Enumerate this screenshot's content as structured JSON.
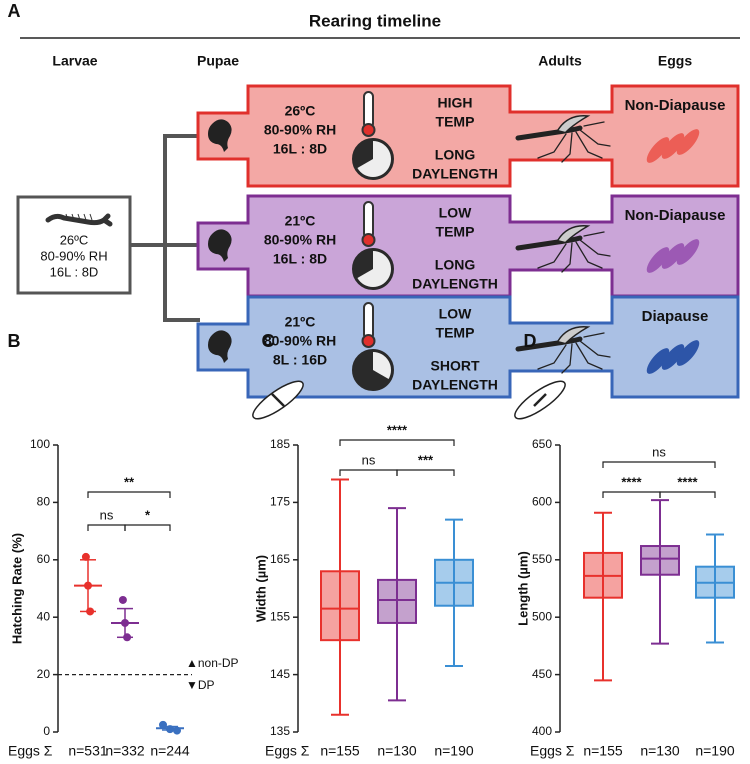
{
  "panel_a": {
    "label": "A",
    "title": "Rearing timeline",
    "stages": [
      "Larvae",
      "Pupae",
      "Adults",
      "Eggs"
    ],
    "larvae": [
      "26ºC",
      "80-90% RH",
      "16L : 8D"
    ],
    "rows": [
      {
        "conditions": [
          "26ºC",
          "80-90% RH",
          "16L : 8D"
        ],
        "temp": [
          "HIGH",
          "TEMP"
        ],
        "daylength": [
          "LONG",
          "DAYLENGTH"
        ],
        "eggs": "Non-Diapause",
        "color": "#e0302c",
        "fill": "#f3a8a5",
        "egg_color": "#ec5e56"
      },
      {
        "conditions": [
          "21ºC",
          "80-90% RH",
          "16L : 8D"
        ],
        "temp": [
          "LOW",
          "TEMP"
        ],
        "daylength": [
          "LONG",
          "DAYLENGTH"
        ],
        "eggs": "Non-Diapause",
        "color": "#7d2e91",
        "fill": "#caa5d8",
        "egg_color": "#9c59b4"
      },
      {
        "conditions": [
          "21ºC",
          "80-90% RH",
          "8L : 16D"
        ],
        "temp": [
          "LOW",
          "TEMP"
        ],
        "daylength": [
          "SHORT",
          "DAYLENGTH"
        ],
        "eggs": "Diapause",
        "color": "#3866b8",
        "fill": "#aac0e4",
        "egg_color": "#2d55a8"
      }
    ]
  },
  "chart_data": [
    {
      "type": "dotplot",
      "label": "B",
      "ylabel": "Hatching Rate (%)",
      "footer": "Eggs Σ",
      "categories": [
        "n=531",
        "n=332",
        "n=244"
      ],
      "colors": [
        "#e8312c",
        "#7d2e91",
        "#3a70c0"
      ],
      "points": [
        [
          61,
          51,
          42
        ],
        [
          46,
          38,
          33
        ],
        [
          2.5,
          1,
          0.5
        ]
      ],
      "means": [
        51,
        38,
        1.3
      ],
      "sem": [
        9,
        5,
        0.6
      ],
      "ylim": [
        0,
        100
      ],
      "yticks": [
        0,
        20,
        40,
        60,
        80,
        100
      ],
      "threshold": {
        "value": 20,
        "labels": [
          "▲non-DP",
          "▼DP"
        ]
      },
      "comparisons": [
        {
          "pair": [
            0,
            1
          ],
          "label": "ns"
        },
        {
          "pair": [
            1,
            2
          ],
          "label": "*"
        },
        {
          "pair": [
            0,
            2
          ],
          "label": "**"
        }
      ]
    },
    {
      "type": "box",
      "label": "C",
      "ylabel": "Width (µm)",
      "footer": "Eggs Σ",
      "categories": [
        "n=155",
        "n=130",
        "n=190"
      ],
      "colors": [
        "#e8312c",
        "#7d2e91",
        "#3a8fd4"
      ],
      "min": [
        138,
        140.5,
        146.5
      ],
      "q1": [
        151,
        154,
        157
      ],
      "median": [
        156.5,
        158,
        161
      ],
      "q3": [
        163,
        161.5,
        165
      ],
      "max": [
        179,
        174,
        172
      ],
      "ylim": [
        135,
        185
      ],
      "yticks": [
        135,
        145,
        155,
        165,
        175,
        185
      ],
      "comparisons": [
        {
          "pair": [
            0,
            1
          ],
          "label": "ns"
        },
        {
          "pair": [
            1,
            2
          ],
          "label": "***"
        },
        {
          "pair": [
            0,
            2
          ],
          "label": "****"
        }
      ]
    },
    {
      "type": "box",
      "label": "D",
      "ylabel": "Length (µm)",
      "footer": "Eggs Σ",
      "categories": [
        "n=155",
        "n=130",
        "n=190"
      ],
      "colors": [
        "#e8312c",
        "#7d2e91",
        "#3a8fd4"
      ],
      "min": [
        445,
        477,
        478
      ],
      "q1": [
        517,
        537,
        517
      ],
      "median": [
        536,
        551,
        530
      ],
      "q3": [
        556,
        562,
        544
      ],
      "max": [
        591,
        602,
        572
      ],
      "ylim": [
        400,
        650
      ],
      "yticks": [
        400,
        450,
        500,
        550,
        600,
        650
      ],
      "comparisons": [
        {
          "pair": [
            0,
            1
          ],
          "label": "****"
        },
        {
          "pair": [
            1,
            2
          ],
          "label": "****"
        },
        {
          "pair": [
            0,
            2
          ],
          "label": "ns"
        }
      ]
    }
  ]
}
